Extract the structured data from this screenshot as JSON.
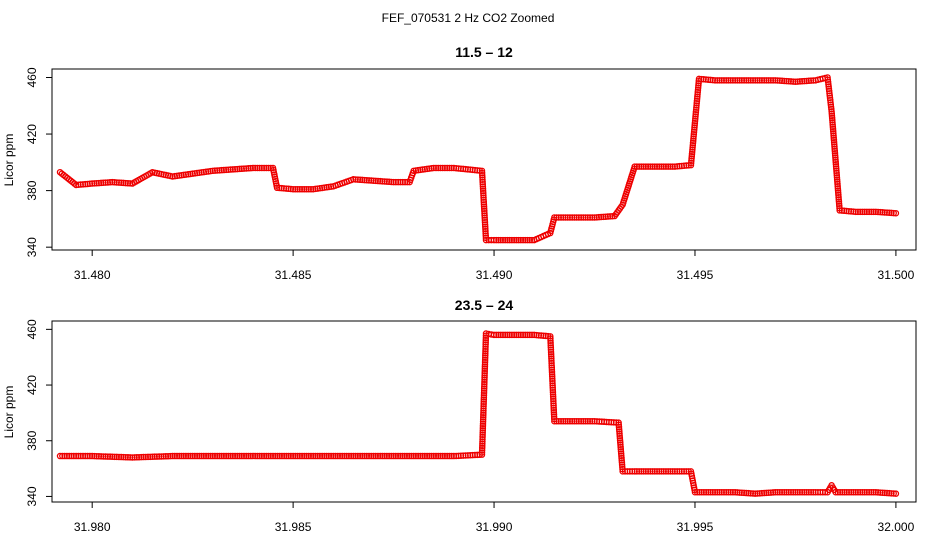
{
  "figure": {
    "title": "FEF_070531  2 Hz CO2 Zoomed",
    "point_color": "#ee0000"
  },
  "chart_data": [
    {
      "type": "scatter",
      "title": "11.5 – 12",
      "xlabel": "",
      "ylabel": "Licor ppm",
      "xlim": [
        31.479,
        31.5005
      ],
      "ylim": [
        338,
        466
      ],
      "xticks": [
        31.48,
        31.485,
        31.49,
        31.495,
        31.5
      ],
      "xtick_labels": [
        "31.480",
        "31.485",
        "31.490",
        "31.495",
        "31.500"
      ],
      "yticks": [
        340,
        380,
        420,
        460
      ],
      "ytick_labels": [
        "340",
        "380",
        "420",
        "460"
      ],
      "grid": false,
      "marker": "open-circle",
      "x": [
        31.4792,
        31.4796,
        31.48,
        31.4805,
        31.481,
        31.4815,
        31.482,
        31.4825,
        31.483,
        31.4835,
        31.484,
        31.4845,
        31.4846,
        31.485,
        31.4855,
        31.486,
        31.4865,
        31.487,
        31.4875,
        31.4879,
        31.488,
        31.4885,
        31.489,
        31.4897,
        31.4898,
        31.49,
        31.4905,
        31.491,
        31.4914,
        31.4915,
        31.492,
        31.4925,
        31.493,
        31.4932,
        31.4935,
        31.494,
        31.4945,
        31.4949,
        31.4951,
        31.4955,
        31.496,
        31.4965,
        31.497,
        31.4975,
        31.498,
        31.4983,
        31.4984,
        31.4986,
        31.499,
        31.4995,
        31.5
      ],
      "y": [
        393,
        384,
        385,
        386,
        385,
        393,
        390,
        392,
        394,
        395,
        396,
        396,
        382,
        381,
        381,
        383,
        388,
        387,
        386,
        386,
        394,
        396,
        396,
        394,
        345,
        345,
        345,
        345,
        350,
        361,
        361,
        361,
        362,
        370,
        397,
        397,
        397,
        398,
        459,
        458,
        458,
        458,
        458,
        457,
        458,
        460,
        436,
        366,
        365,
        365,
        364
      ]
    },
    {
      "type": "scatter",
      "title": "23.5 – 24",
      "xlabel": "",
      "ylabel": "Licor ppm",
      "xlim": [
        31.979,
        32.0005
      ],
      "ylim": [
        336,
        466
      ],
      "xticks": [
        31.98,
        31.985,
        31.99,
        31.995,
        32.0
      ],
      "xtick_labels": [
        "31.980",
        "31.985",
        "31.990",
        "31.995",
        "32.000"
      ],
      "yticks": [
        340,
        380,
        420,
        460
      ],
      "ytick_labels": [
        "340",
        "380",
        "420",
        "460"
      ],
      "grid": false,
      "marker": "open-circle",
      "x": [
        31.9792,
        31.98,
        31.981,
        31.982,
        31.983,
        31.984,
        31.985,
        31.986,
        31.987,
        31.988,
        31.989,
        31.9897,
        31.9898,
        31.99,
        31.9905,
        31.991,
        31.9914,
        31.9915,
        31.992,
        31.9925,
        31.9931,
        31.9932,
        31.9935,
        31.994,
        31.9945,
        31.9949,
        31.995,
        31.9955,
        31.996,
        31.9965,
        31.997,
        31.9975,
        31.998,
        31.9983,
        31.9984,
        31.9985,
        31.999,
        31.9995,
        32.0
      ],
      "y": [
        369,
        369,
        368,
        369,
        369,
        369,
        369,
        369,
        369,
        369,
        369,
        370,
        457,
        456,
        456,
        456,
        455,
        394,
        394,
        394,
        393,
        358,
        358,
        358,
        358,
        358,
        343,
        343,
        343,
        342,
        343,
        343,
        343,
        343,
        348,
        343,
        343,
        343,
        342
      ]
    }
  ]
}
